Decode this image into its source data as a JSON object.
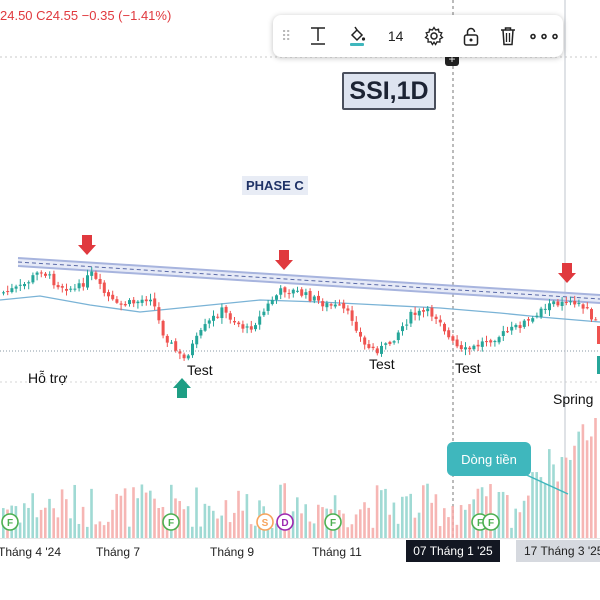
{
  "ohlc_text": "24.50 C24.55 −0.35 (−1.41%)",
  "toolbar": {
    "drag_handle": "⠿",
    "text_tool_icon": "text-tool-icon",
    "fill_icon": "fill-bucket-icon",
    "fill_color": "#3fb7bd",
    "font_size": "14",
    "settings_icon": "gear-icon",
    "lock_icon": "unlock-icon",
    "delete_icon": "trash-icon",
    "more_label": "∘∘∘"
  },
  "chart_title_label": "SSI,1D",
  "annotations": {
    "phase": "PHASE C",
    "support": "Hỗ trợ",
    "test1": "Test",
    "test2": "Test",
    "test3": "Test",
    "spring": "Spring",
    "money_flow": "Dòng tiền"
  },
  "colors": {
    "up": "#26a69a",
    "down": "#ef5350",
    "arrow_down": "#e0393e",
    "arrow_up": "#1e9e84",
    "ma_line": "#7ab3d6",
    "trendline": "#a7b4de",
    "event_flag": "#4caf50",
    "dividend_flag": "#f7a35c",
    "d_flag": "#9c27b0"
  },
  "xaxis": {
    "ticks": [
      "Tháng 4 '24",
      "Tháng 7",
      "Tháng 9",
      "Tháng 11",
      "07 Tháng 1 '25",
      "17 Tháng 3 '25"
    ]
  },
  "events": [
    {
      "letter": "F",
      "kind": "earnings"
    },
    {
      "letter": "F",
      "kind": "earnings"
    },
    {
      "letter": "S",
      "kind": "split"
    },
    {
      "letter": "D",
      "kind": "dividend"
    },
    {
      "letter": "F",
      "kind": "earnings"
    },
    {
      "letter": "F",
      "kind": "earnings"
    },
    {
      "letter": "F",
      "kind": "earnings"
    }
  ]
}
